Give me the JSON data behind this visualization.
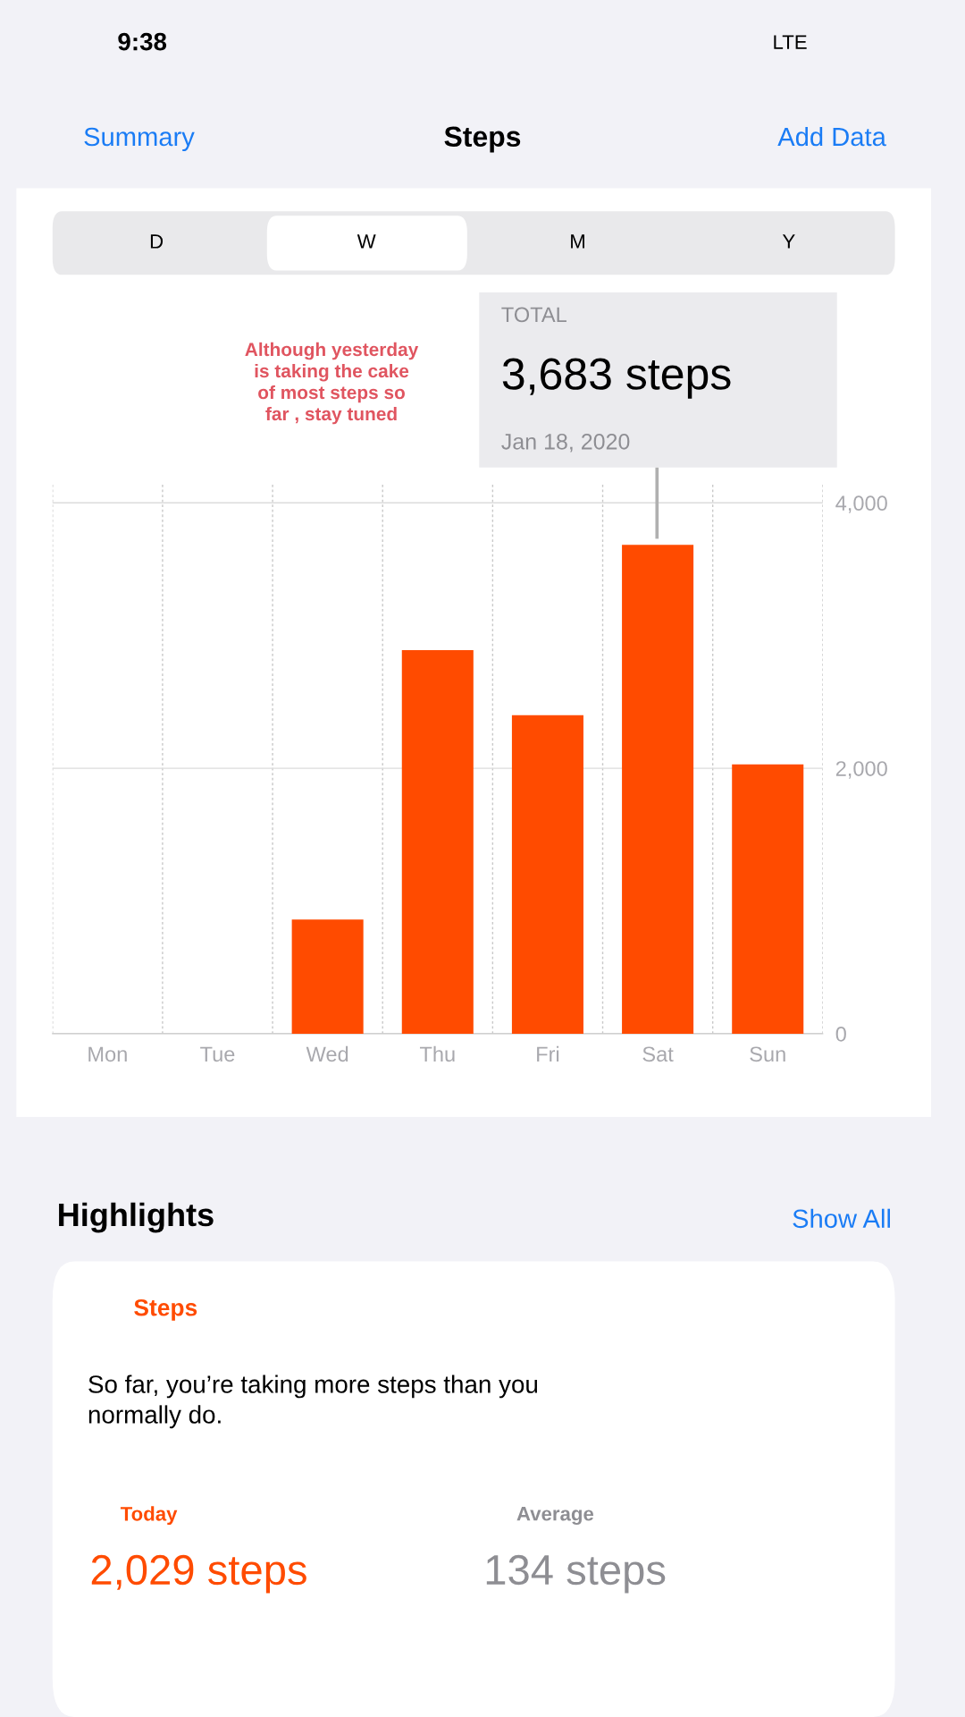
{
  "chart_data": {
    "type": "bar",
    "title": "Steps",
    "categories": [
      "Mon",
      "Tue",
      "Wed",
      "Thu",
      "Fri",
      "Sat",
      "Sun"
    ],
    "values": [
      0,
      0,
      860,
      2890,
      2400,
      3683,
      2029
    ],
    "color": "#ff4b00",
    "ylim": [
      0,
      4150
    ],
    "yticks": [
      0,
      {
        "value": 2000,
        "label": "2,000"
      },
      {
        "value": 4000,
        "label": "4,000"
      }
    ],
    "grid": true,
    "annotations": [
      "9:38",
      "LTE",
      "Summary",
      "Add Data",
      "D",
      "W",
      "M",
      "Y",
      "Although yesterday\nis taking the cake\nof most steps so\nfar , stay tuned",
      "TOTAL",
      "3,683 steps",
      "Jan 18, 2020",
      "Highlights",
      "Show All",
      "Steps",
      "So far, you’re taking more steps than you\nnormally do.",
      "Today",
      "2,029 steps",
      "Average",
      "134 steps"
    ]
  }
}
